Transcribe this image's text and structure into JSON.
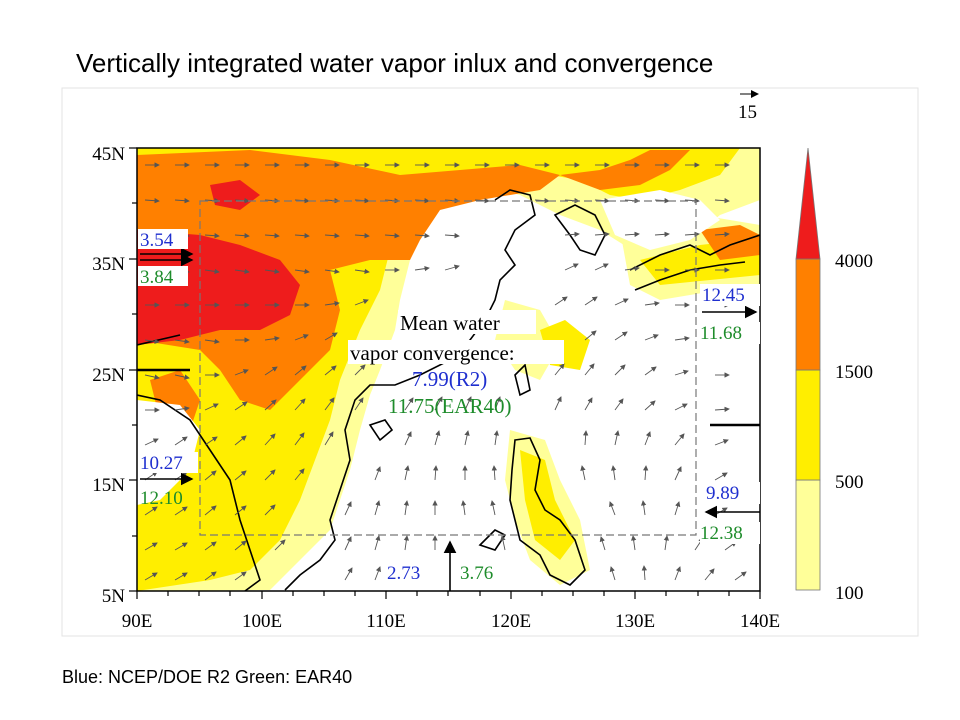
{
  "title": "Vertically integrated water vapor inlux and convergence",
  "caption": "Blue: NCEP/DOE R2   Green: EAR40",
  "map": {
    "lat_labels": [
      "45N",
      "35N",
      "25N",
      "15N",
      "5N"
    ],
    "lon_labels": [
      "90E",
      "100E",
      "110E",
      "120E",
      "130E",
      "140E"
    ],
    "reference_vector_value": "15",
    "convergence_title_line1": "Mean water",
    "convergence_title_line2": "vapor convergence:",
    "convergence_r2": "7.99(R2)",
    "convergence_era40": "11.75(EAR40)",
    "flux_west_upper_blue": "3.54",
    "flux_west_upper_green": "3.84",
    "flux_west_lower_blue": "10.27",
    "flux_west_lower_green": "12.10",
    "flux_east_upper_blue": "12.45",
    "flux_east_upper_green": "11.68",
    "flux_east_lower_blue": "9.89",
    "flux_east_lower_green": "12.38",
    "flux_south_blue": "2.73",
    "flux_south_green": "3.76",
    "colors": {
      "blue_text": "#1f2fcf",
      "green_text": "#1e8c2b",
      "level_100_500": "#ffff99",
      "level_500_1500": "#ffee00",
      "level_1500_4000": "#ff8000",
      "level_4000_plus": "#ee1c1c"
    }
  },
  "colorbar": {
    "labels": [
      "4000",
      "1500",
      "500",
      "100"
    ]
  }
}
